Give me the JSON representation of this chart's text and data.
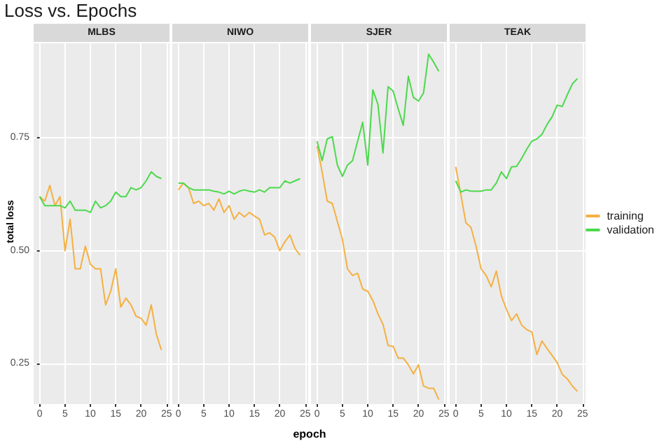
{
  "chart_data": [
    {
      "type": "line",
      "title": "Loss vs. Epochs",
      "subtitle": "MLBS",
      "ylabel": "total loss",
      "x": [
        0,
        1,
        2,
        3,
        4,
        5,
        6,
        7,
        8,
        9,
        10,
        11,
        12,
        13,
        14,
        15,
        16,
        17,
        18,
        19,
        20,
        21,
        22,
        23,
        24
      ],
      "xlim": [
        -1.2,
        25.6
      ],
      "xticks": [
        0,
        5,
        10,
        15,
        20,
        25
      ],
      "ylim": [
        0.16,
        0.96
      ],
      "yticks": [
        {
          "value": 0.25,
          "label": "0.25"
        },
        {
          "value": 0.5,
          "label": "0.50"
        },
        {
          "value": 0.75,
          "label": "0.75"
        }
      ],
      "grid": true,
      "legend": false,
      "series": [
        {
          "color": "#f5b041",
          "values": [
            0.62,
            0.61,
            0.645,
            0.6,
            0.62,
            0.5,
            0.57,
            0.46,
            0.46,
            0.51,
            0.47,
            0.46,
            0.46,
            0.38,
            0.41,
            0.46,
            0.375,
            0.395,
            0.38,
            0.355,
            0.35,
            0.335,
            0.38,
            0.315,
            0.28
          ]
        },
        {
          "color": "#4cd94c",
          "values": [
            0.62,
            0.6,
            0.6,
            0.6,
            0.6,
            0.595,
            0.61,
            0.59,
            0.59,
            0.59,
            0.585,
            0.61,
            0.595,
            0.6,
            0.61,
            0.63,
            0.62,
            0.62,
            0.64,
            0.635,
            0.64,
            0.655,
            0.675,
            0.665,
            0.66
          ]
        }
      ]
    },
    {
      "type": "line",
      "subtitle": "NIWO",
      "xlabel": "epoch",
      "x": [
        0,
        1,
        2,
        3,
        4,
        5,
        6,
        7,
        8,
        9,
        10,
        11,
        12,
        13,
        14,
        15,
        16,
        17,
        18,
        19,
        20,
        21,
        22,
        23,
        24
      ],
      "xlim": [
        -1.2,
        25.6
      ],
      "xticks": [
        0,
        5,
        10,
        15,
        20,
        25
      ],
      "ylim": [
        0.16,
        0.96
      ],
      "yticks": [
        0.25,
        0.5,
        0.75
      ],
      "grid": true,
      "legend": false,
      "tick_labels": "x",
      "series": [
        {
          "color": "#f5b041",
          "values": [
            0.635,
            0.65,
            0.64,
            0.605,
            0.61,
            0.6,
            0.605,
            0.59,
            0.615,
            0.585,
            0.6,
            0.57,
            0.585,
            0.575,
            0.585,
            0.577,
            0.57,
            0.535,
            0.54,
            0.53,
            0.5,
            0.52,
            0.535,
            0.505,
            0.49
          ]
        },
        {
          "color": "#4cd94c",
          "values": [
            0.65,
            0.65,
            0.64,
            0.635,
            0.635,
            0.635,
            0.635,
            0.632,
            0.63,
            0.626,
            0.632,
            0.626,
            0.632,
            0.635,
            0.632,
            0.63,
            0.635,
            0.63,
            0.64,
            0.64,
            0.64,
            0.655,
            0.65,
            0.655,
            0.66
          ]
        }
      ]
    },
    {
      "type": "line",
      "subtitle": "SJER",
      "x": [
        0,
        1,
        2,
        3,
        4,
        5,
        6,
        7,
        8,
        9,
        10,
        11,
        12,
        13,
        14,
        15,
        16,
        17,
        18,
        19,
        20,
        21,
        22,
        23,
        24
      ],
      "xlim": [
        -1.2,
        25.6
      ],
      "xticks": [
        0,
        5,
        10,
        15,
        20,
        25
      ],
      "ylim": [
        0.16,
        0.96
      ],
      "yticks": [
        0.25,
        0.5,
        0.75
      ],
      "grid": true,
      "legend": false,
      "tick_labels": "x",
      "series": [
        {
          "color": "#f5b041",
          "values": [
            0.732,
            0.675,
            0.61,
            0.605,
            0.565,
            0.525,
            0.46,
            0.445,
            0.45,
            0.415,
            0.41,
            0.39,
            0.36,
            0.337,
            0.29,
            0.288,
            0.262,
            0.262,
            0.247,
            0.227,
            0.247,
            0.2,
            0.195,
            0.195,
            0.17
          ]
        },
        {
          "color": "#4cd94c",
          "values": [
            0.743,
            0.7,
            0.748,
            0.753,
            0.69,
            0.665,
            0.69,
            0.7,
            0.743,
            0.785,
            0.69,
            0.857,
            0.825,
            0.717,
            0.864,
            0.854,
            0.815,
            0.778,
            0.887,
            0.84,
            0.832,
            0.85,
            0.936,
            0.918,
            0.898
          ]
        }
      ]
    },
    {
      "type": "line",
      "subtitle": "TEAK",
      "x": [
        0,
        1,
        2,
        3,
        4,
        5,
        6,
        7,
        8,
        9,
        10,
        11,
        12,
        13,
        14,
        15,
        16,
        17,
        18,
        19,
        20,
        21,
        22,
        23,
        24
      ],
      "xlim": [
        -1.2,
        25.6
      ],
      "xticks": [
        0,
        5,
        10,
        15,
        20,
        25
      ],
      "ylim": [
        0.16,
        0.96
      ],
      "yticks": [
        0.25,
        0.5,
        0.75
      ],
      "grid": true,
      "legend": "right",
      "tick_labels": "x",
      "series": [
        {
          "name": "training",
          "color": "#f5b041",
          "values": [
            0.686,
            0.625,
            0.562,
            0.552,
            0.51,
            0.46,
            0.445,
            0.42,
            0.455,
            0.4,
            0.37,
            0.345,
            0.36,
            0.335,
            0.325,
            0.32,
            0.27,
            0.3,
            0.283,
            0.268,
            0.252,
            0.226,
            0.216,
            0.2,
            0.188
          ]
        },
        {
          "name": "validation",
          "color": "#4cd94c",
          "values": [
            0.655,
            0.63,
            0.635,
            0.632,
            0.632,
            0.632,
            0.635,
            0.635,
            0.65,
            0.675,
            0.66,
            0.686,
            0.687,
            0.705,
            0.725,
            0.743,
            0.748,
            0.758,
            0.78,
            0.797,
            0.823,
            0.82,
            0.846,
            0.87,
            0.882
          ]
        }
      ]
    }
  ]
}
